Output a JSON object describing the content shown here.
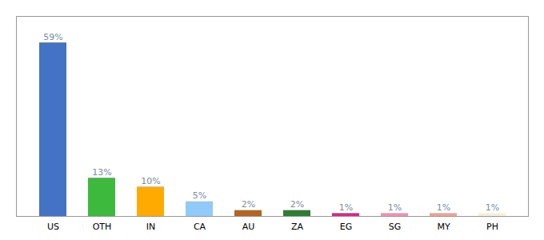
{
  "chart_data": {
    "type": "bar",
    "categories": [
      "US",
      "OTH",
      "IN",
      "CA",
      "AU",
      "ZA",
      "EG",
      "SG",
      "MY",
      "PH"
    ],
    "values": [
      59,
      13,
      10,
      5,
      2,
      2,
      1,
      1,
      1,
      1
    ],
    "value_labels": [
      "59%",
      "13%",
      "10%",
      "5%",
      "2%",
      "2%",
      "1%",
      "1%",
      "1%",
      "1%"
    ],
    "colors": [
      "#4472c4",
      "#3dba3d",
      "#ffaa00",
      "#90caf9",
      "#b5651d",
      "#2e7d32",
      "#e91e8c",
      "#f48fb1",
      "#f4a090",
      "#f5f0d8"
    ],
    "ylim": [
      0,
      68
    ],
    "data_labels": true,
    "tick_labels": "x",
    "grid": false
  }
}
